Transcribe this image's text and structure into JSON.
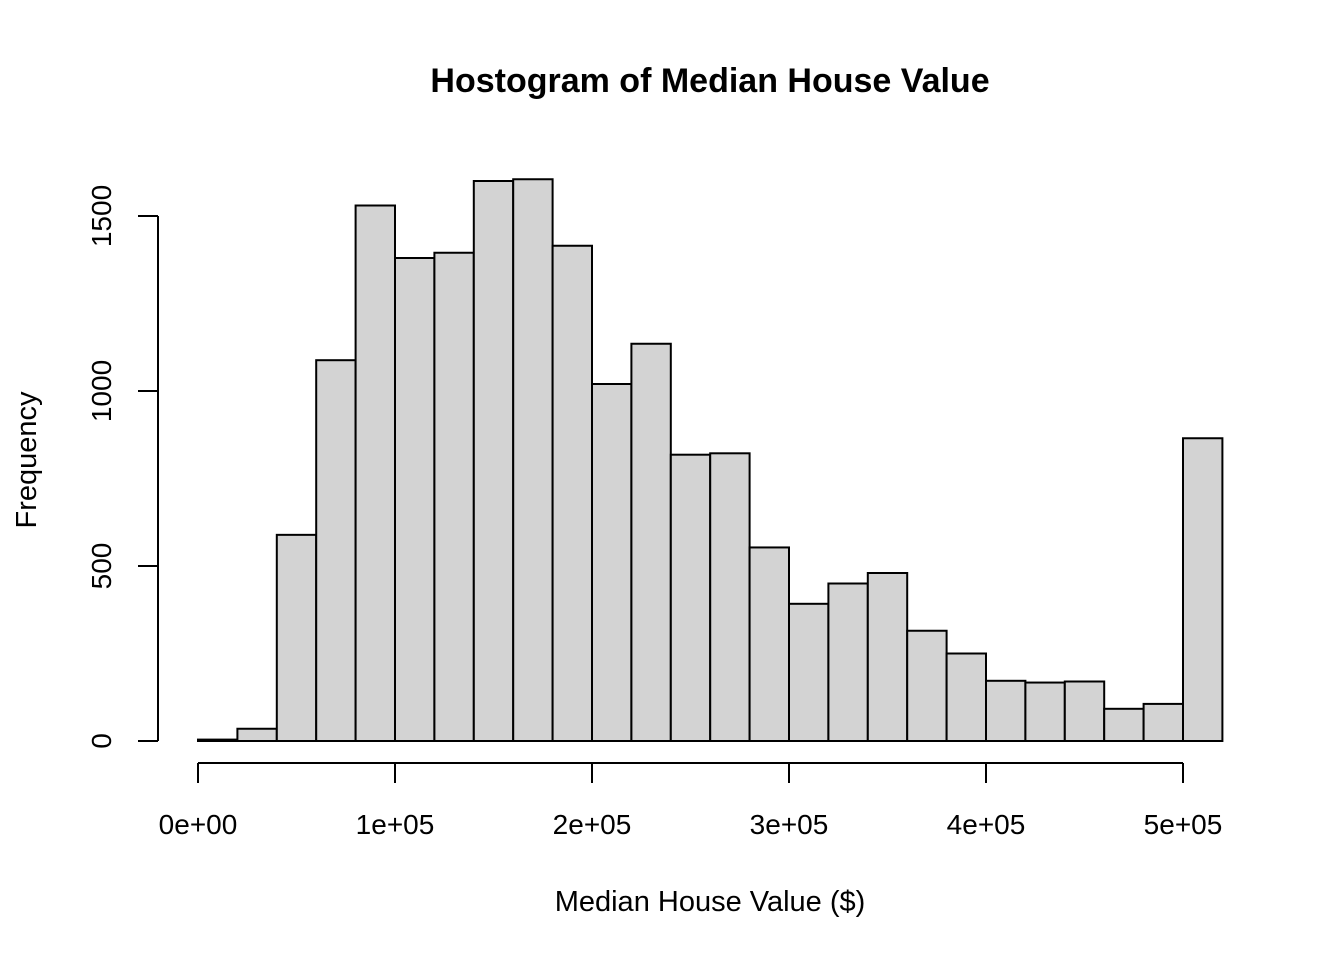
{
  "chart_data": {
    "type": "bar",
    "title": "Hostogram of Median House Value",
    "xlabel": "Median House Value ($)",
    "ylabel": "Frequency",
    "bin_width": 20000,
    "bins": [
      {
        "start": 0,
        "end": 20000,
        "count": 4
      },
      {
        "start": 20000,
        "end": 40000,
        "count": 35
      },
      {
        "start": 40000,
        "end": 60000,
        "count": 589
      },
      {
        "start": 60000,
        "end": 80000,
        "count": 1088
      },
      {
        "start": 80000,
        "end": 100000,
        "count": 1530
      },
      {
        "start": 100000,
        "end": 120000,
        "count": 1380
      },
      {
        "start": 120000,
        "end": 140000,
        "count": 1395
      },
      {
        "start": 140000,
        "end": 160000,
        "count": 1600
      },
      {
        "start": 160000,
        "end": 180000,
        "count": 1605
      },
      {
        "start": 180000,
        "end": 200000,
        "count": 1415
      },
      {
        "start": 200000,
        "end": 220000,
        "count": 1020
      },
      {
        "start": 220000,
        "end": 240000,
        "count": 1135
      },
      {
        "start": 240000,
        "end": 260000,
        "count": 818
      },
      {
        "start": 260000,
        "end": 280000,
        "count": 822
      },
      {
        "start": 280000,
        "end": 300000,
        "count": 553
      },
      {
        "start": 300000,
        "end": 320000,
        "count": 392
      },
      {
        "start": 320000,
        "end": 340000,
        "count": 450
      },
      {
        "start": 340000,
        "end": 360000,
        "count": 480
      },
      {
        "start": 360000,
        "end": 380000,
        "count": 315
      },
      {
        "start": 380000,
        "end": 400000,
        "count": 250
      },
      {
        "start": 400000,
        "end": 420000,
        "count": 172
      },
      {
        "start": 420000,
        "end": 440000,
        "count": 167
      },
      {
        "start": 440000,
        "end": 460000,
        "count": 170
      },
      {
        "start": 460000,
        "end": 480000,
        "count": 92
      },
      {
        "start": 480000,
        "end": 500000,
        "count": 106
      },
      {
        "start": 500000,
        "end": 520000,
        "count": 865
      }
    ],
    "xlim": [
      0,
      520000
    ],
    "ylim": [
      0,
      1605
    ],
    "x_ticks": [
      {
        "value": 0,
        "label": "0e+00"
      },
      {
        "value": 100000,
        "label": "1e+05"
      },
      {
        "value": 200000,
        "label": "2e+05"
      },
      {
        "value": 300000,
        "label": "3e+05"
      },
      {
        "value": 400000,
        "label": "4e+05"
      },
      {
        "value": 500000,
        "label": "5e+05"
      }
    ],
    "y_ticks": [
      {
        "value": 0,
        "label": "0"
      },
      {
        "value": 500,
        "label": "500"
      },
      {
        "value": 1000,
        "label": "1000"
      },
      {
        "value": 1500,
        "label": "1500"
      }
    ],
    "grid": false,
    "colors": {
      "bar_fill": "#d3d3d3",
      "bar_stroke": "#000000"
    }
  }
}
